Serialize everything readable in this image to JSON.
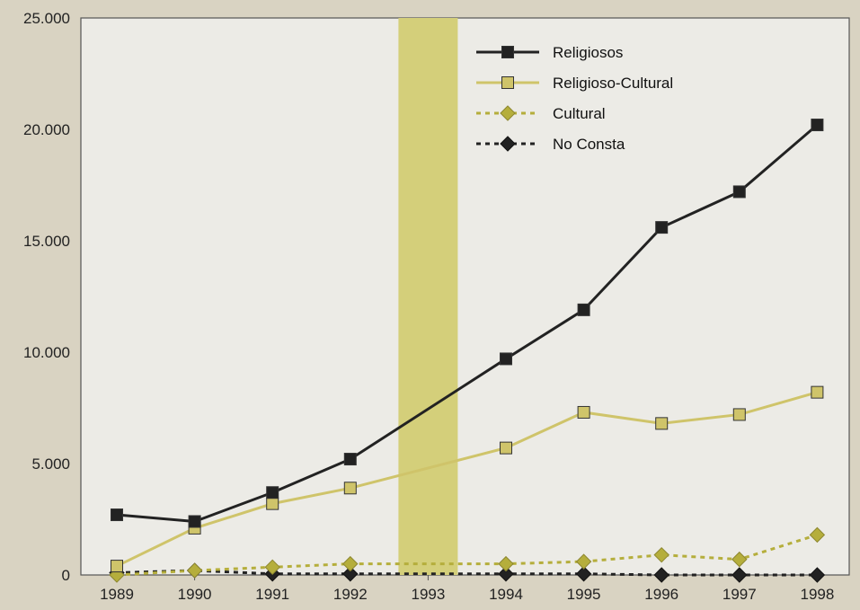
{
  "chart_data": {
    "type": "line",
    "categories": [
      "1989",
      "1990",
      "1991",
      "1992",
      "1993",
      "1994",
      "1995",
      "1996",
      "1997",
      "1998"
    ],
    "ylim": [
      0,
      25000
    ],
    "yticks": [
      0,
      5000,
      10000,
      15000,
      20000,
      25000
    ],
    "ytick_labels": [
      "0",
      "5.000",
      "10.000",
      "15.000",
      "20.000",
      "25.000"
    ],
    "highlight_category": "1993",
    "highlight_color": "#d4cf7a",
    "legend_position": "top-right",
    "grid": false,
    "series": [
      {
        "name": "Religiosos",
        "marker": "square",
        "line_style": "solid",
        "color": "#222222",
        "values": [
          2700,
          2400,
          3700,
          5200,
          null,
          9700,
          11900,
          15600,
          17200,
          20200
        ]
      },
      {
        "name": "Religioso-Cultural",
        "marker": "square",
        "line_style": "solid",
        "color": "#cfc46a",
        "values": [
          400,
          2100,
          3200,
          3900,
          null,
          5700,
          7300,
          6800,
          7200,
          8200
        ]
      },
      {
        "name": "Cultural",
        "marker": "diamond",
        "line_style": "dotted",
        "color": "#b5ae3c",
        "values": [
          0,
          200,
          350,
          500,
          null,
          500,
          600,
          900,
          700,
          1800
        ]
      },
      {
        "name": "No Consta",
        "marker": "diamond",
        "line_style": "dotted",
        "color": "#222222",
        "values": [
          100,
          200,
          50,
          50,
          null,
          50,
          50,
          0,
          0,
          0
        ]
      }
    ]
  }
}
